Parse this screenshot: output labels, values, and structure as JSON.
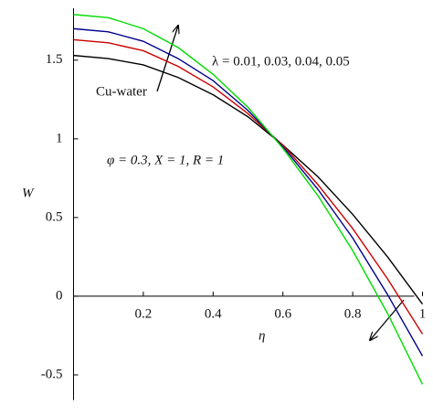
{
  "chart_data": {
    "type": "line",
    "x_label": "η",
    "y_label": "W",
    "annotations": [
      "λ = 0.01, 0.03, 0.04, 0.05",
      "Cu-water",
      "φ = 0.3, X = 1, R = 1"
    ],
    "x": [
      0,
      0.1,
      0.2,
      0.3,
      0.4,
      0.5,
      0.6,
      0.7,
      0.8,
      0.9,
      1
    ],
    "series": [
      {
        "color": "#000000",
        "values": [
          1.53,
          1.51,
          1.47,
          1.39,
          1.28,
          1.14,
          0.96,
          0.76,
          0.52,
          0.25,
          -0.05
        ]
      },
      {
        "color": "#cc0000",
        "values": [
          1.63,
          1.61,
          1.56,
          1.46,
          1.33,
          1.16,
          0.96,
          0.71,
          0.43,
          0.11,
          -0.24
        ]
      },
      {
        "color": "#00008b",
        "values": [
          1.7,
          1.68,
          1.62,
          1.51,
          1.37,
          1.18,
          0.95,
          0.68,
          0.37,
          0.01,
          -0.38
        ]
      },
      {
        "color": "#00dd00",
        "values": [
          1.79,
          1.77,
          1.7,
          1.58,
          1.41,
          1.2,
          0.94,
          0.64,
          0.29,
          -0.11,
          -0.56
        ]
      }
    ],
    "xlim": [
      0,
      1
    ],
    "ylim": [
      -0.66,
      1.83
    ],
    "xticks": [
      0.2,
      0.4,
      0.6,
      0.8,
      1
    ],
    "yticks": [
      -0.5,
      0,
      0.5,
      1,
      1.5
    ]
  }
}
